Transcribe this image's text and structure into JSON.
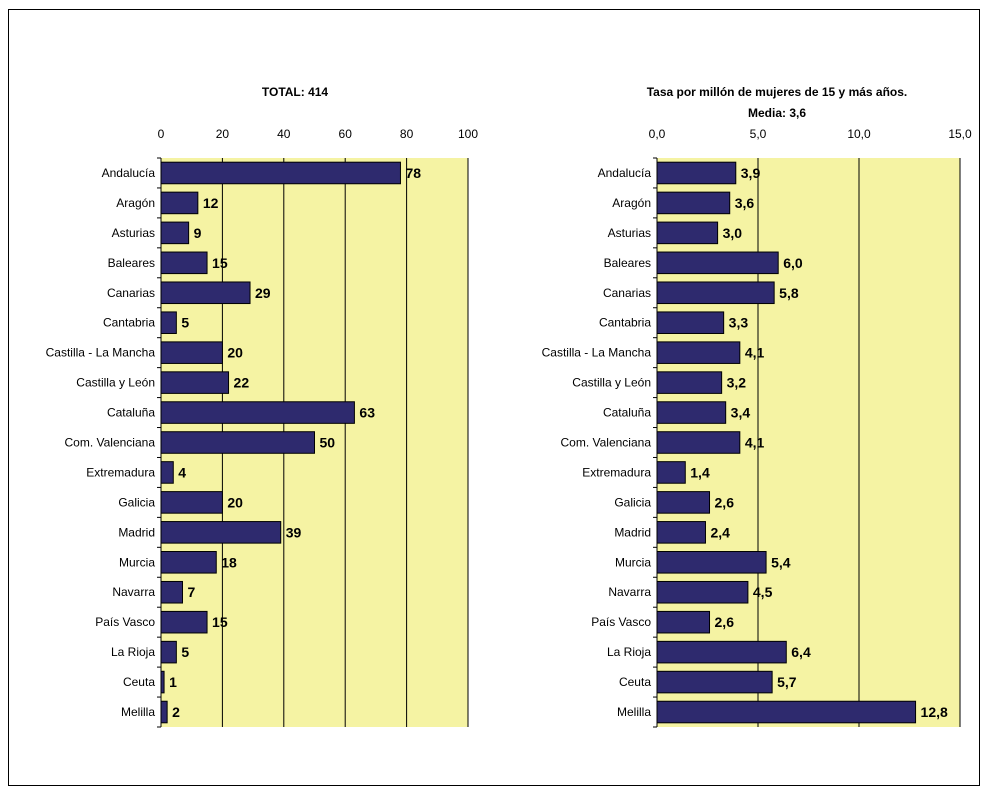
{
  "chart_data": [
    {
      "type": "bar",
      "orientation": "horizontal",
      "title": "TOTAL: 414",
      "subtitle": "",
      "categories": [
        "Andalucía",
        "Aragón",
        "Asturias",
        "Baleares",
        "Canarias",
        "Cantabria",
        "Castilla - La Mancha",
        "Castilla y León",
        "Cataluña",
        "Com. Valenciana",
        "Extremadura",
        "Galicia",
        "Madrid",
        "Murcia",
        "Navarra",
        "País Vasco",
        "La Rioja",
        "Ceuta",
        "Melilla"
      ],
      "values": [
        78,
        12,
        9,
        15,
        29,
        5,
        20,
        22,
        63,
        50,
        4,
        20,
        39,
        18,
        7,
        15,
        5,
        1,
        2
      ],
      "value_labels": [
        "78",
        "12",
        "9",
        "15",
        "29",
        "5",
        "20",
        "22",
        "63",
        "50",
        "4",
        "20",
        "39",
        "18",
        "7",
        "15",
        "5",
        "1",
        "2"
      ],
      "xlim": [
        0,
        100
      ],
      "ticks": [
        0,
        20,
        40,
        60,
        80,
        100
      ],
      "tick_labels": [
        "0",
        "20",
        "40",
        "60",
        "80",
        "100"
      ],
      "axis_position": "top",
      "grid": true,
      "colors": {
        "bar": "#2e2a6e",
        "plot_bg": "#f5f3a3",
        "grid": "#000000"
      }
    },
    {
      "type": "bar",
      "orientation": "horizontal",
      "title": "Tasa por millón de mujeres de 15 y más años.",
      "subtitle": "Media: 3,6",
      "categories": [
        "Andalucía",
        "Aragón",
        "Asturias",
        "Baleares",
        "Canarias",
        "Cantabria",
        "Castilla - La Mancha",
        "Castilla y León",
        "Cataluña",
        "Com. Valenciana",
        "Extremadura",
        "Galicia",
        "Madrid",
        "Murcia",
        "Navarra",
        "País Vasco",
        "La Rioja",
        "Ceuta",
        "Melilla"
      ],
      "values": [
        3.9,
        3.6,
        3.0,
        6.0,
        5.8,
        3.3,
        4.1,
        3.2,
        3.4,
        4.1,
        1.4,
        2.6,
        2.4,
        5.4,
        4.5,
        2.6,
        6.4,
        5.7,
        12.8
      ],
      "value_labels": [
        "3,9",
        "3,6",
        "3,0",
        "6,0",
        "5,8",
        "3,3",
        "4,1",
        "3,2",
        "3,4",
        "4,1",
        "1,4",
        "2,6",
        "2,4",
        "5,4",
        "4,5",
        "2,6",
        "6,4",
        "5,7",
        "12,8"
      ],
      "xlim": [
        0,
        15
      ],
      "ticks": [
        0,
        5,
        10,
        15
      ],
      "tick_labels": [
        "0,0",
        "5,0",
        "10,0",
        "15,0"
      ],
      "axis_position": "top",
      "grid": true,
      "colors": {
        "bar": "#2e2a6e",
        "plot_bg": "#f5f3a3",
        "grid": "#000000"
      }
    }
  ]
}
